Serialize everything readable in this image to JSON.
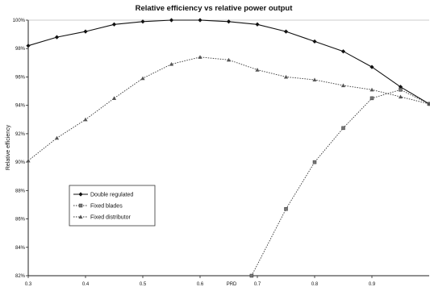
{
  "chart_data": {
    "type": "line",
    "title": "Relative efficiency vs relative power output",
    "xlabel": "",
    "ylabel": "Relative efficiency",
    "xlim": [
      0.3,
      1.0
    ],
    "ylim": [
      0.82,
      1.0
    ],
    "x_ticks": [
      "0.3",
      "0.4",
      "0.5",
      "0.6",
      "0.7",
      "0.8",
      "0.9"
    ],
    "x_tick_values": [
      0.3,
      0.4,
      0.5,
      0.6,
      0.7,
      0.8,
      0.9
    ],
    "y_ticks": [
      "82%",
      "84%",
      "86%",
      "88%",
      "90%",
      "92%",
      "94%",
      "96%",
      "98%",
      "100%"
    ],
    "y_tick_values": [
      0.82,
      0.84,
      0.86,
      0.88,
      0.9,
      0.92,
      0.94,
      0.96,
      0.98,
      1.0
    ],
    "annotation": "PRD",
    "annotation_x": 0.655,
    "grid": "top line only",
    "legend_position": "lower-left",
    "series": [
      {
        "name": "Double regulated",
        "color": "#111111",
        "dash": "solid",
        "marker": "diamond",
        "x": [
          0.3,
          0.35,
          0.4,
          0.45,
          0.5,
          0.55,
          0.6,
          0.65,
          0.7,
          0.75,
          0.8,
          0.85,
          0.9,
          0.95,
          1.0
        ],
        "y": [
          0.982,
          0.988,
          0.992,
          0.997,
          0.999,
          1.0,
          1.0,
          0.999,
          0.997,
          0.992,
          0.985,
          0.978,
          0.967,
          0.953,
          0.941
        ]
      },
      {
        "name": "Fixed blades",
        "color": "#333333",
        "dash": "dotted",
        "marker": "square",
        "x": [
          0.69,
          0.75,
          0.8,
          0.85,
          0.9,
          0.95,
          1.0
        ],
        "y": [
          0.82,
          0.867,
          0.9,
          0.924,
          0.945,
          0.951,
          0.941
        ]
      },
      {
        "name": "Fixed distributor",
        "color": "#333333",
        "dash": "dotted",
        "marker": "triangle",
        "x": [
          0.3,
          0.35,
          0.4,
          0.45,
          0.5,
          0.55,
          0.6,
          0.65,
          0.7,
          0.75,
          0.8,
          0.85,
          0.9,
          0.95,
          1.0
        ],
        "y": [
          0.901,
          0.917,
          0.93,
          0.945,
          0.959,
          0.969,
          0.974,
          0.972,
          0.965,
          0.96,
          0.958,
          0.954,
          0.951,
          0.946,
          0.941
        ]
      }
    ]
  }
}
